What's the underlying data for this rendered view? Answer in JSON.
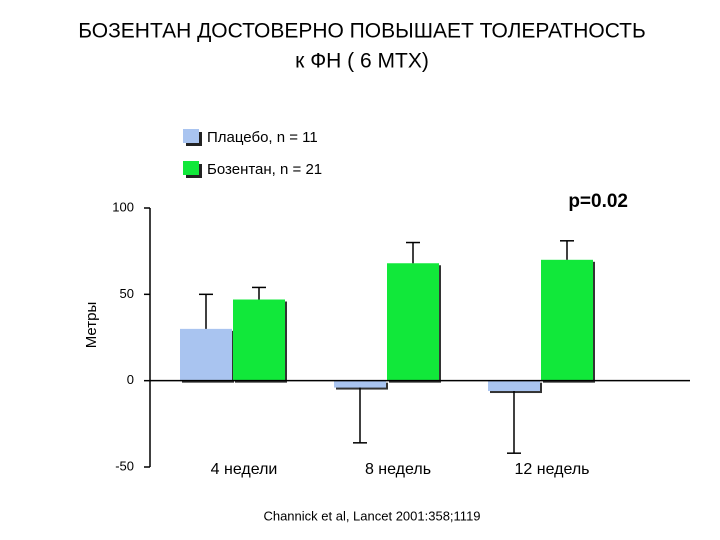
{
  "chart_data": {
    "type": "bar",
    "title": "БОЗЕНТАН ДОСТОВЕРНО ПОВЫШАЕТ ТОЛЕРАТНОСТЬ",
    "subtitle": "к  ФН ( 6 МТХ)",
    "y_label": "Метры",
    "annotation": "p=0.02",
    "source": "Channick et al, Lancet 2001:358;1119",
    "categories": [
      "4 недели",
      "8 недель",
      "12 недель"
    ],
    "series": [
      {
        "name": "Плацебо, n = 11",
        "color": "#a9c4f0",
        "values": [
          30,
          -4,
          -6
        ],
        "errors": [
          20,
          32,
          36
        ]
      },
      {
        "name": "Бозентан, n = 21",
        "color": "#11e83a",
        "values": [
          47,
          68,
          70
        ],
        "errors": [
          7,
          12,
          11
        ]
      }
    ],
    "ylim": [
      -50,
      100
    ],
    "yticks": [
      -50,
      0,
      50,
      100
    ]
  }
}
